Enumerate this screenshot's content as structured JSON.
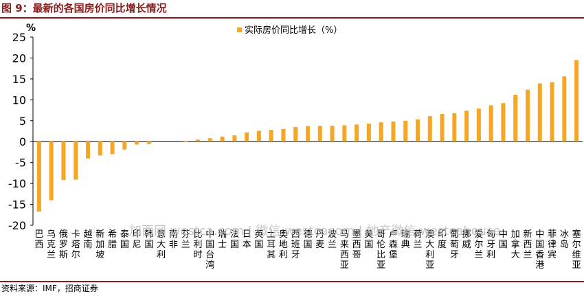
{
  "figure": {
    "title": "图 9：最新的各国房价同比增长情况",
    "source": "资料来源：IMF，招商证券",
    "watermark": "加西网 westca.com | 微信 westcacom | 地产微信 westcahouse"
  },
  "chart_data": {
    "type": "bar",
    "unit_label": "%",
    "legend": "实际房价同比增长（%）",
    "legend_position": "top",
    "bar_color": "#f5a623",
    "ylim": [
      -20,
      25
    ],
    "yticks": [
      -20,
      -15,
      -10,
      -5,
      0,
      5,
      10,
      15,
      20,
      25
    ],
    "grid": false,
    "categories": [
      "巴西",
      "乌克兰",
      "俄罗斯",
      "卡塔尔",
      "越南",
      "新加坡",
      "希腊",
      "泰国",
      "印尼",
      "韩国",
      "意大利",
      "南非",
      "芬兰",
      "比利时",
      "中国台湾",
      "瑞士",
      "法国",
      "日本",
      "英国",
      "土耳其",
      "奥地利",
      "西班牙",
      "德国",
      "丹麦",
      "波兰",
      "马来西亚",
      "墨西哥",
      "美国",
      "哥伦比亚",
      "卢森堡",
      "瑞典",
      "荷兰",
      "澳大利亚",
      "印度",
      "葡萄牙",
      "挪威",
      "爱尔兰",
      "匈牙利",
      "中国",
      "加拿大",
      "新西兰",
      "中国香港",
      "菲律宾",
      "冰岛",
      "塞尔维亚"
    ],
    "values": [
      -16.7,
      -14.0,
      -9.2,
      -9.1,
      -4.0,
      -3.3,
      -3.0,
      -1.9,
      -0.7,
      -0.6,
      0.0,
      0.0,
      0.1,
      0.5,
      0.8,
      1.2,
      1.5,
      2.2,
      2.6,
      2.8,
      3.0,
      3.5,
      3.7,
      3.8,
      3.8,
      3.9,
      4.1,
      4.3,
      4.6,
      4.8,
      5.0,
      5.3,
      6.1,
      6.6,
      6.8,
      7.4,
      7.9,
      8.7,
      9.2,
      11.2,
      12.4,
      13.9,
      14.2,
      15.6,
      19.5
    ]
  }
}
